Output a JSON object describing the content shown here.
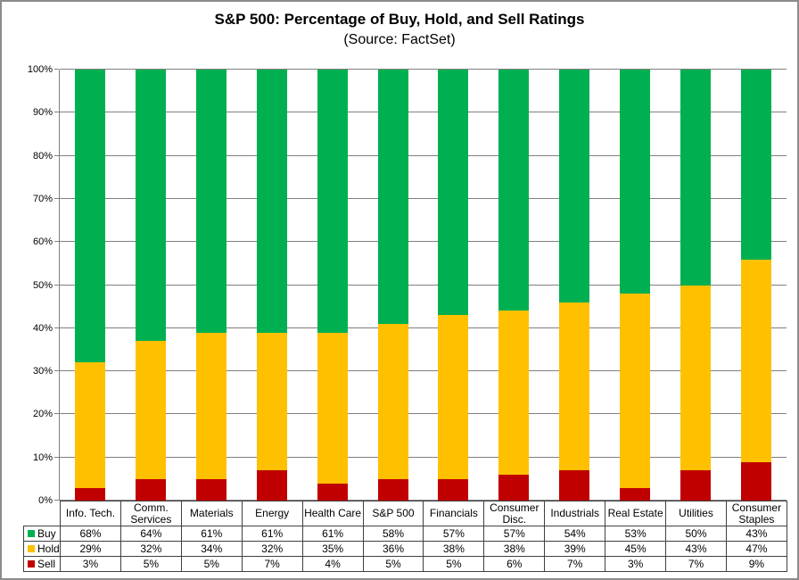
{
  "chart_data": {
    "type": "bar",
    "stacked": true,
    "title": "S&P 500: Percentage of Buy, Hold, and Sell Ratings",
    "subtitle": "(Source: FactSet)",
    "categories": [
      "Info. Tech.",
      "Comm. Services",
      "Materials",
      "Energy",
      "Health Care",
      "S&P 500",
      "Financials",
      "Consumer Disc.",
      "Industrials",
      "Real Estate",
      "Utilities",
      "Consumer Staples"
    ],
    "series": [
      {
        "name": "Buy",
        "color": "#00B050",
        "values": [
          68,
          64,
          61,
          61,
          61,
          58,
          57,
          57,
          54,
          53,
          50,
          43
        ]
      },
      {
        "name": "Hold",
        "color": "#FFC000",
        "values": [
          29,
          32,
          34,
          32,
          35,
          36,
          38,
          38,
          39,
          45,
          43,
          47
        ]
      },
      {
        "name": "Sell",
        "color": "#C00000",
        "values": [
          3,
          5,
          5,
          7,
          4,
          5,
          5,
          6,
          7,
          3,
          7,
          9
        ]
      }
    ],
    "ylim": [
      0,
      100
    ],
    "ytick_step": 10,
    "ytick_suffix": "%",
    "value_suffix": "%",
    "grid": true,
    "legend_position": "table-left-column",
    "colors": {
      "gridline": "#808080",
      "axis": "#808080",
      "table_border": "#404040",
      "background": "#ffffff"
    }
  }
}
